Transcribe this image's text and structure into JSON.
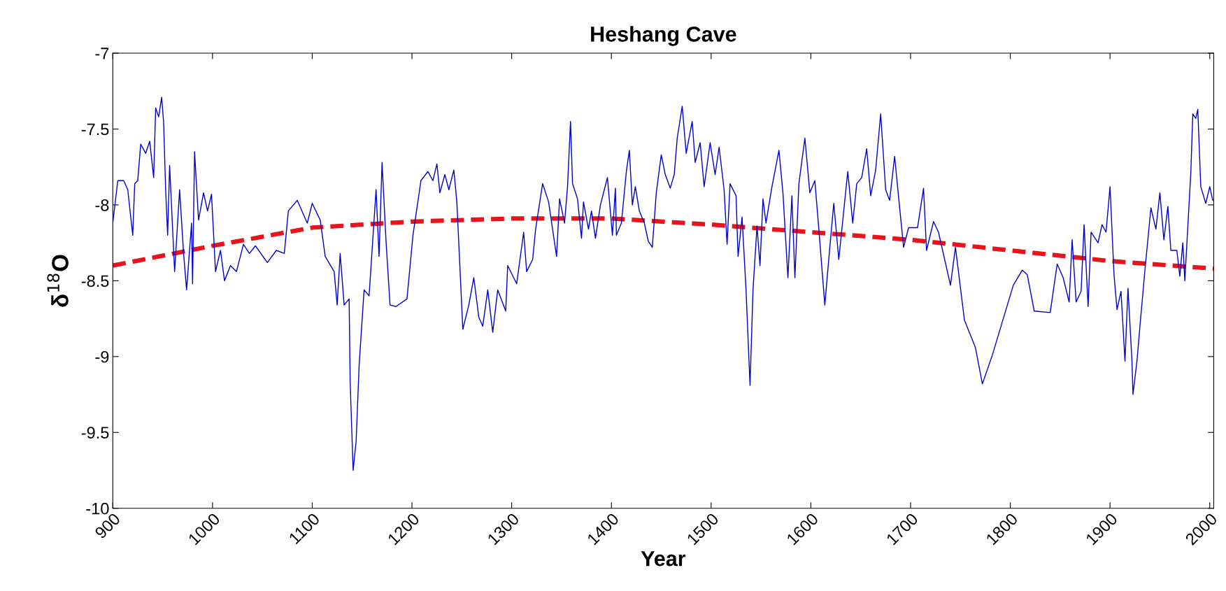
{
  "chart_data": {
    "type": "line",
    "title": "Heshang Cave",
    "xlabel": "Year",
    "ylabel": "δ$^{18}$O",
    "xlim": [
      900,
      2004
    ],
    "ylim": [
      -10,
      -7
    ],
    "xticks": [
      900,
      1000,
      1100,
      1200,
      1300,
      1400,
      1500,
      1600,
      1700,
      1800,
      1900,
      2000
    ],
    "yticks": [
      -10,
      -9.5,
      -9,
      -8.5,
      -8,
      -7.5,
      -7
    ],
    "grid": false,
    "legend": false,
    "marker": "none",
    "series": [
      {
        "color": "#0000cc",
        "line_style": "solid",
        "x": [
          900,
          905,
          911,
          915,
          920,
          922,
          925,
          928,
          933,
          937,
          941,
          943,
          946,
          949,
          951,
          953,
          955,
          957,
          962,
          967,
          971,
          974,
          979,
          980,
          982,
          986,
          991,
          995,
          999,
          1003,
          1008,
          1012,
          1018,
          1024,
          1031,
          1037,
          1043,
          1055,
          1064,
          1072,
          1076,
          1085,
          1095,
          1100,
          1108,
          1113,
          1122,
          1125,
          1128,
          1132,
          1137,
          1138,
          1141,
          1144,
          1147,
          1152,
          1157,
          1164,
          1167,
          1170,
          1174,
          1178,
          1184,
          1195,
          1201,
          1209,
          1216,
          1221,
          1225,
          1228,
          1233,
          1237,
          1242,
          1245,
          1251,
          1257,
          1262,
          1267,
          1271,
          1276,
          1281,
          1286,
          1294,
          1296,
          1305,
          1312,
          1315,
          1321,
          1324,
          1331,
          1337,
          1345,
          1348,
          1353,
          1356,
          1359,
          1361,
          1366,
          1370,
          1372,
          1377,
          1380,
          1384,
          1389,
          1396,
          1401,
          1404,
          1405,
          1410,
          1415,
          1418,
          1421,
          1424,
          1428,
          1433,
          1437,
          1441,
          1445,
          1450,
          1454,
          1459,
          1463,
          1466,
          1471,
          1475,
          1481,
          1484,
          1489,
          1493,
          1499,
          1504,
          1508,
          1513,
          1516,
          1519,
          1525,
          1527,
          1531,
          1535,
          1539,
          1542,
          1546,
          1549,
          1552,
          1555,
          1561,
          1568,
          1572,
          1577,
          1581,
          1584,
          1588,
          1594,
          1599,
          1604,
          1608,
          1614,
          1619,
          1623,
          1628,
          1637,
          1642,
          1646,
          1651,
          1656,
          1660,
          1665,
          1670,
          1675,
          1679,
          1684,
          1688,
          1693,
          1698,
          1707,
          1713,
          1716,
          1723,
          1728,
          1740,
          1745,
          1754,
          1765,
          1772,
          1782,
          1803,
          1812,
          1817,
          1824,
          1840,
          1847,
          1853,
          1859,
          1862,
          1866,
          1871,
          1874,
          1878,
          1881,
          1888,
          1892,
          1896,
          1900,
          1904,
          1907,
          1911,
          1915,
          1918,
          1922,
          1923,
          1927,
          1930,
          1935,
          1941,
          1946,
          1950,
          1954,
          1958,
          1961,
          1967,
          1970,
          1973,
          1975,
          1981,
          1983,
          1986,
          1988,
          1991,
          1996,
          2000,
          2003
        ],
        "values": [
          -8.12,
          -7.84,
          -7.84,
          -7.9,
          -8.2,
          -7.86,
          -7.84,
          -7.6,
          -7.66,
          -7.58,
          -7.82,
          -7.36,
          -7.42,
          -7.29,
          -7.46,
          -7.9,
          -8.2,
          -7.74,
          -8.44,
          -7.9,
          -8.32,
          -8.56,
          -8.12,
          -8.52,
          -7.65,
          -8.1,
          -7.92,
          -8.04,
          -7.93,
          -8.44,
          -8.3,
          -8.5,
          -8.4,
          -8.44,
          -8.26,
          -8.32,
          -8.27,
          -8.38,
          -8.3,
          -8.32,
          -8.04,
          -7.97,
          -8.12,
          -7.99,
          -8.1,
          -8.34,
          -8.44,
          -8.66,
          -8.32,
          -8.66,
          -8.62,
          -9.16,
          -9.75,
          -9.56,
          -9.06,
          -8.56,
          -8.6,
          -7.9,
          -8.34,
          -7.72,
          -8.24,
          -8.66,
          -8.67,
          -8.62,
          -8.2,
          -7.84,
          -7.78,
          -7.84,
          -7.73,
          -7.92,
          -7.8,
          -7.9,
          -7.77,
          -7.98,
          -8.82,
          -8.66,
          -8.48,
          -8.74,
          -8.8,
          -8.56,
          -8.84,
          -8.56,
          -8.7,
          -8.4,
          -8.52,
          -8.18,
          -8.44,
          -8.36,
          -8.16,
          -7.86,
          -7.98,
          -8.34,
          -7.96,
          -8.12,
          -7.88,
          -7.45,
          -7.86,
          -7.96,
          -8.22,
          -7.98,
          -8.16,
          -8.04,
          -8.22,
          -8.0,
          -7.82,
          -8.2,
          -7.89,
          -8.2,
          -8.12,
          -7.78,
          -7.64,
          -8.0,
          -7.88,
          -8.04,
          -8.12,
          -8.24,
          -8.28,
          -7.92,
          -7.67,
          -7.8,
          -7.89,
          -7.8,
          -7.56,
          -7.35,
          -7.66,
          -7.45,
          -7.72,
          -7.59,
          -7.88,
          -7.59,
          -7.8,
          -7.62,
          -7.9,
          -8.26,
          -7.86,
          -7.94,
          -8.34,
          -8.08,
          -8.56,
          -9.19,
          -8.56,
          -8.14,
          -8.4,
          -7.96,
          -8.12,
          -7.88,
          -7.64,
          -7.92,
          -8.48,
          -7.94,
          -8.48,
          -7.86,
          -7.56,
          -7.92,
          -7.84,
          -8.16,
          -8.66,
          -8.28,
          -7.99,
          -8.36,
          -7.78,
          -8.12,
          -7.86,
          -7.82,
          -7.63,
          -7.94,
          -7.77,
          -7.4,
          -7.9,
          -7.97,
          -7.68,
          -7.95,
          -8.28,
          -8.15,
          -8.15,
          -7.89,
          -8.3,
          -8.11,
          -8.18,
          -8.53,
          -8.28,
          -8.76,
          -8.94,
          -9.18,
          -8.99,
          -8.53,
          -8.43,
          -8.46,
          -8.7,
          -8.71,
          -8.39,
          -8.48,
          -8.64,
          -8.23,
          -8.64,
          -8.57,
          -8.13,
          -8.67,
          -8.18,
          -8.25,
          -8.13,
          -8.18,
          -7.88,
          -8.46,
          -8.69,
          -8.57,
          -9.03,
          -8.55,
          -9.03,
          -9.25,
          -9.03,
          -8.8,
          -8.43,
          -8.02,
          -8.16,
          -7.92,
          -8.23,
          -8.01,
          -8.3,
          -8.3,
          -8.47,
          -8.25,
          -8.5,
          -7.79,
          -7.4,
          -7.43,
          -7.37,
          -7.88,
          -7.99,
          -7.88,
          -7.97
        ]
      },
      {
        "color": "#e8141c",
        "line_style": "dashed",
        "x": [
          900,
          1000,
          1100,
          1200,
          1300,
          1400,
          1500,
          1600,
          1700,
          1800,
          1900,
          2004
        ],
        "values": [
          -8.4,
          -8.27,
          -8.15,
          -8.11,
          -8.09,
          -8.09,
          -8.13,
          -8.18,
          -8.23,
          -8.3,
          -8.37,
          -8.42
        ]
      }
    ]
  }
}
